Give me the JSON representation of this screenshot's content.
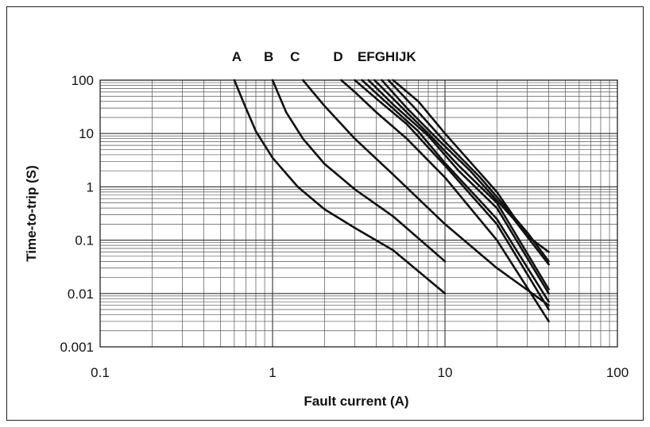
{
  "chart_data": {
    "type": "line",
    "title": "",
    "xlabel": "Fault current (A)",
    "ylabel": "Time-to-trip (S)",
    "x_scale": "log",
    "y_scale": "log",
    "xlim": [
      0.1,
      100
    ],
    "ylim": [
      0.001,
      100
    ],
    "x_tick_labels": [
      "0.1",
      "1",
      "10",
      "100"
    ],
    "y_tick_labels": [
      "100",
      "10",
      "1",
      "0.1",
      "0.01",
      "0.001"
    ],
    "grid": true,
    "curve_labels": [
      {
        "text": "A",
        "x": 0.62
      },
      {
        "text": "B",
        "x": 0.95
      },
      {
        "text": "C",
        "x": 1.35
      },
      {
        "text": "D",
        "x": 2.4
      },
      {
        "text": "EFGHIJK",
        "x": 4.6
      }
    ],
    "series": [
      {
        "values": [
          [
            0.6,
            100
          ],
          [
            0.7,
            30
          ],
          [
            0.8,
            11
          ],
          [
            1.0,
            3.5
          ],
          [
            1.4,
            1.0
          ],
          [
            2.0,
            0.38
          ],
          [
            3.0,
            0.17
          ],
          [
            5.0,
            0.065
          ],
          [
            10.0,
            0.01
          ]
        ]
      },
      {
        "values": [
          [
            1.0,
            100
          ],
          [
            1.2,
            25
          ],
          [
            1.5,
            8
          ],
          [
            2.0,
            2.7
          ],
          [
            3.0,
            0.9
          ],
          [
            5.0,
            0.28
          ],
          [
            10.0,
            0.04
          ]
        ]
      },
      {
        "values": [
          [
            1.5,
            100
          ],
          [
            2.0,
            33
          ],
          [
            3.0,
            8
          ],
          [
            5.0,
            1.7
          ],
          [
            10.0,
            0.2
          ],
          [
            20.0,
            0.03
          ],
          [
            40.0,
            0.006
          ]
        ]
      },
      {
        "values": [
          [
            2.5,
            100
          ],
          [
            3.0,
            60
          ],
          [
            4.0,
            25
          ],
          [
            6.0,
            8
          ],
          [
            10.0,
            1.5
          ],
          [
            20.0,
            0.1
          ],
          [
            40.0,
            0.003
          ]
        ]
      },
      {
        "values": [
          [
            3.0,
            100
          ],
          [
            4.0,
            45
          ],
          [
            6.0,
            15
          ],
          [
            10.0,
            2.5
          ],
          [
            20.0,
            0.2
          ],
          [
            40.0,
            0.005
          ]
        ]
      },
      {
        "values": [
          [
            3.3,
            100
          ],
          [
            4.5,
            40
          ],
          [
            7.0,
            11
          ],
          [
            10.0,
            2.8
          ],
          [
            20.0,
            0.25
          ],
          [
            40.0,
            0.007
          ]
        ]
      },
      {
        "values": [
          [
            3.6,
            100
          ],
          [
            5.0,
            35
          ],
          [
            8.0,
            9
          ],
          [
            12.0,
            2.0
          ],
          [
            20.0,
            0.4
          ],
          [
            40.0,
            0.01
          ]
        ]
      },
      {
        "values": [
          [
            3.9,
            100
          ],
          [
            5.5,
            33
          ],
          [
            8.0,
            10
          ],
          [
            12.0,
            2.5
          ],
          [
            20.0,
            0.5
          ],
          [
            40.0,
            0.012
          ]
        ]
      },
      {
        "values": [
          [
            4.3,
            100
          ],
          [
            6.0,
            30
          ],
          [
            9.0,
            8
          ],
          [
            14.0,
            2.0
          ],
          [
            25.0,
            0.25
          ],
          [
            40.0,
            0.035
          ]
        ]
      },
      {
        "values": [
          [
            4.7,
            100
          ],
          [
            6.5,
            33
          ],
          [
            10.0,
            7
          ],
          [
            16.0,
            1.5
          ],
          [
            30.0,
            0.14
          ],
          [
            40.0,
            0.04
          ]
        ]
      },
      {
        "values": [
          [
            5.0,
            100
          ],
          [
            7.0,
            40
          ],
          [
            10.0,
            10
          ],
          [
            20.0,
            0.8
          ],
          [
            30.0,
            0.12
          ],
          [
            40.0,
            0.06
          ]
        ]
      }
    ]
  }
}
